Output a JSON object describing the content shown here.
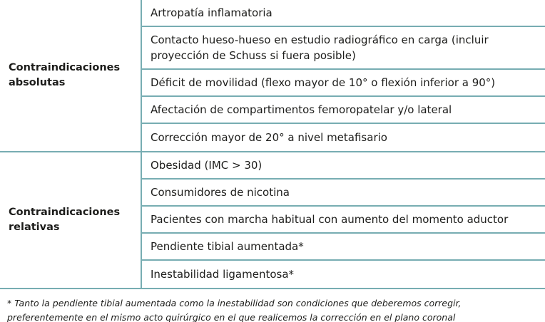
{
  "colors": {
    "accent": "#77adb2",
    "text": "#1d1d1b"
  },
  "table": {
    "groups": [
      {
        "label": "Contraindicaciones absolutas",
        "items": [
          "Artropatía inflamatoria",
          "Contacto hueso-hueso en estudio radiográfico en carga (incluir proyección de Schuss si fuera posible)",
          "Déficit de movilidad (flexo mayor de 10° o flexión inferior a 90°)",
          "Afectación de compartimentos femoropatelar y/o lateral",
          "Corrección mayor de 20° a nivel metafisario"
        ]
      },
      {
        "label": "Contraindicaciones relativas",
        "items": [
          "Obesidad (IMC > 30)",
          "Consumidores de nicotina",
          "Pacientes con marcha habitual con aumento del momento aductor",
          "Pendiente tibial aumentada*",
          "Inestabilidad ligamentosa*"
        ]
      }
    ]
  },
  "footnote": "* Tanto la pendiente tibial aumentada como la inestabilidad son condiciones que deberemos corregir, preferentemente en el mismo acto quirúrgico en el que realicemos la corrección en el plano coronal"
}
